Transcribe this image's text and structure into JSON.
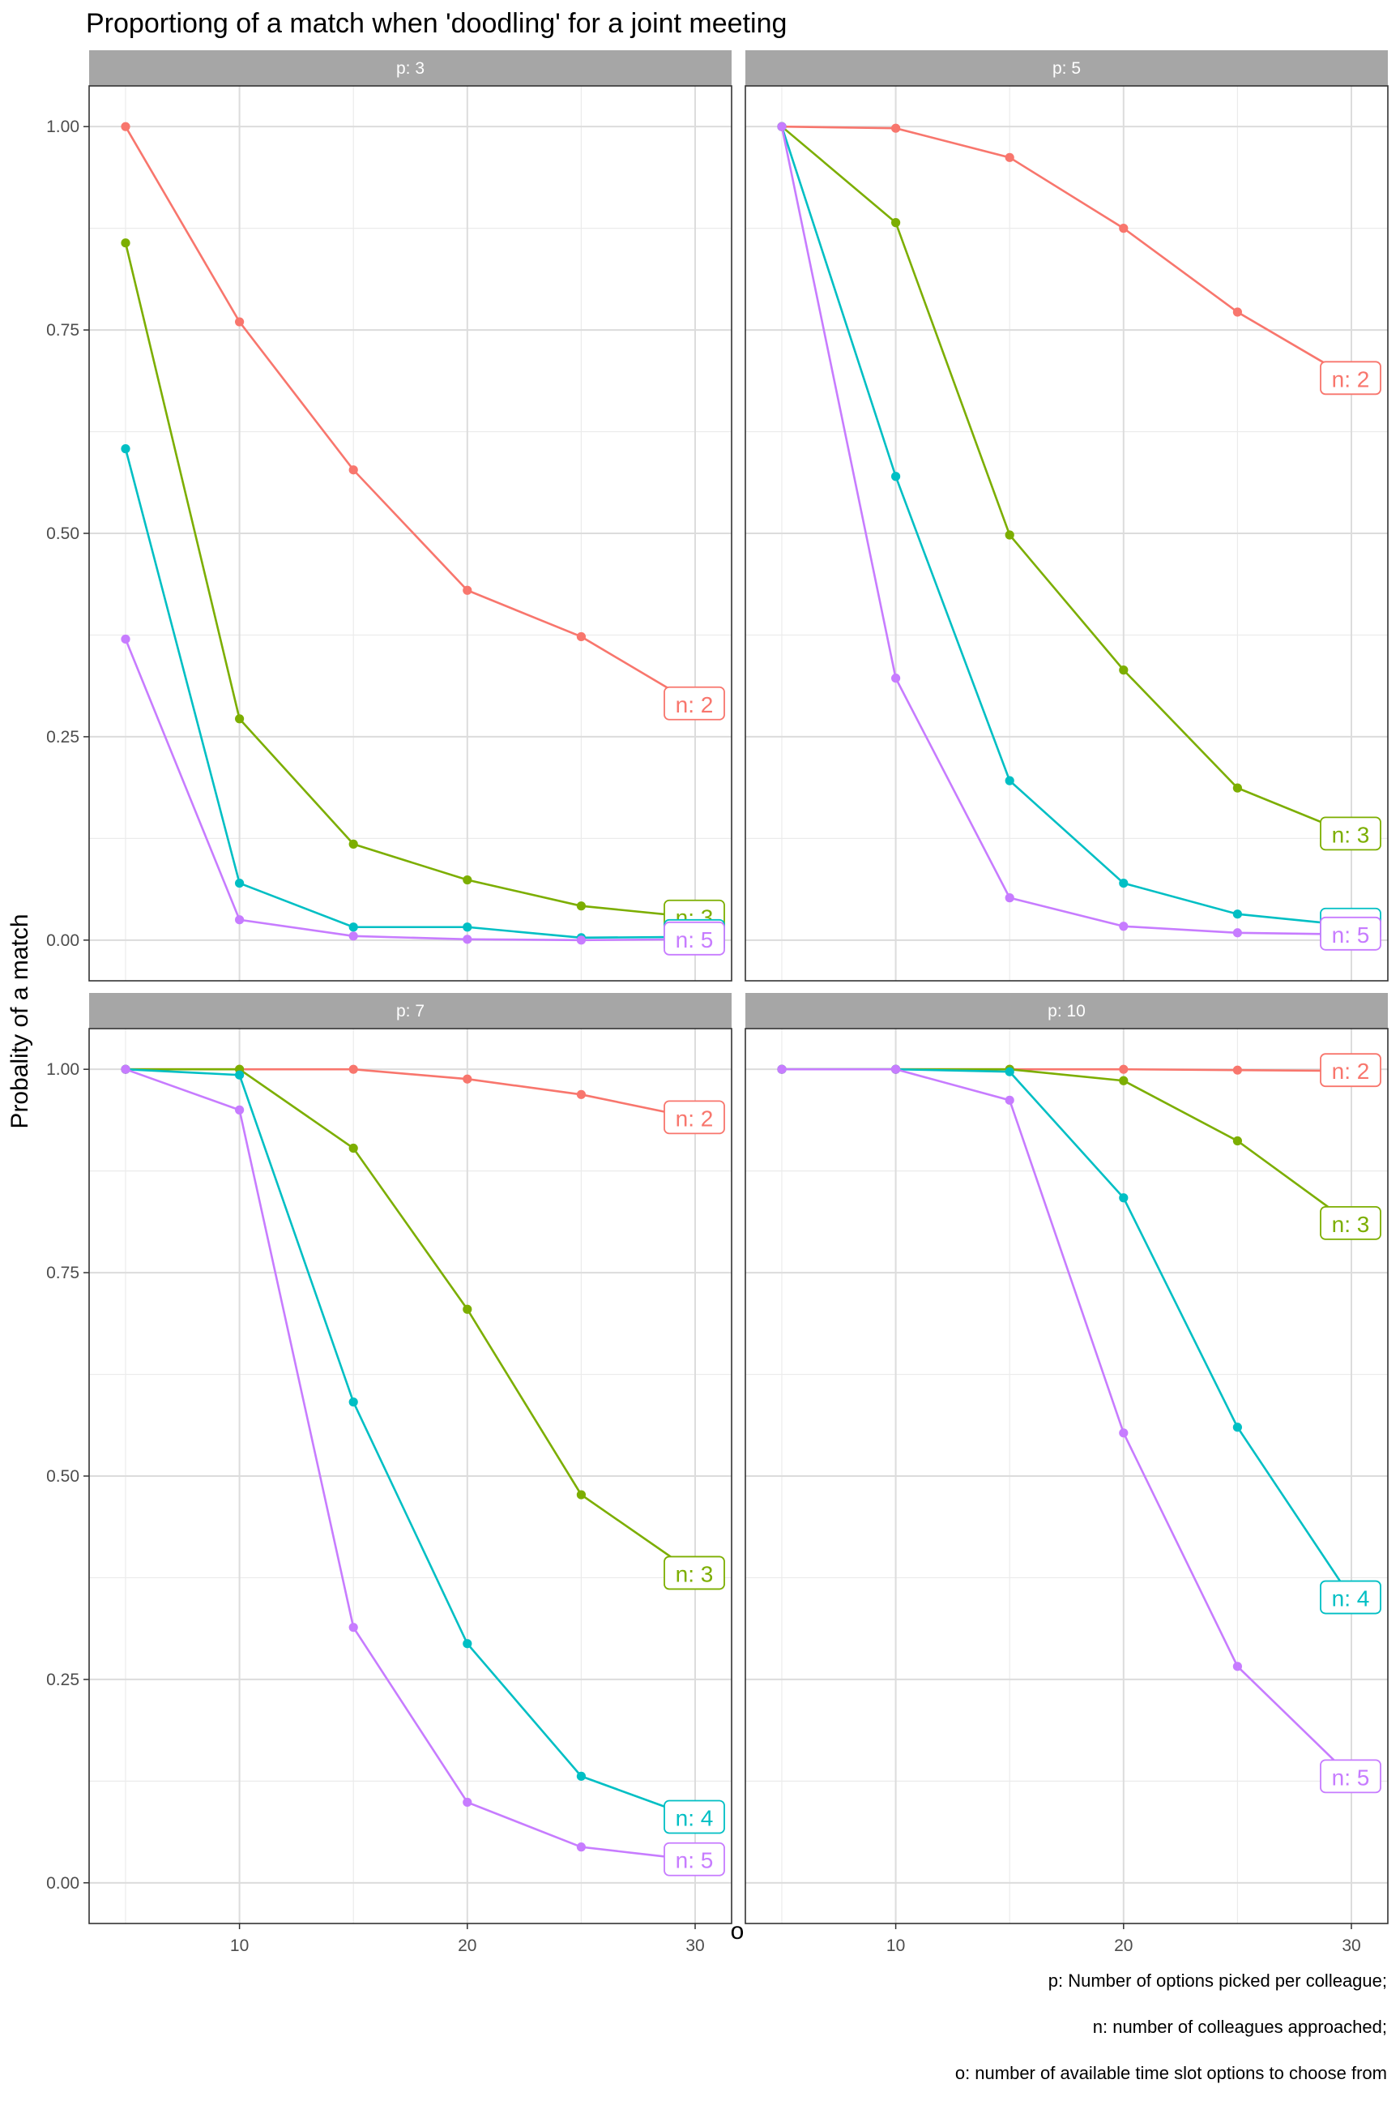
{
  "chart_data": {
    "type": "line",
    "title": "Proportiong of a match when 'doodling' for a joint meeting",
    "xlabel": "o",
    "ylabel": "Probality of a match",
    "xlim": [
      3.4,
      31.6
    ],
    "ylim": [
      -0.05,
      1.05
    ],
    "x_ticks": [
      10,
      20,
      30
    ],
    "x_tick_labels": [
      "10",
      "20",
      "30"
    ],
    "y_ticks": [
      0,
      0.25,
      0.5,
      0.75,
      1
    ],
    "y_tick_labels": [
      "0.00",
      "0.25",
      "0.50",
      "0.75",
      "1.00"
    ],
    "grid": true,
    "legend": "none (direct labels at line ends)",
    "x": [
      5,
      10,
      15,
      20,
      25,
      30
    ],
    "caption": [
      "p: Number of options picked per colleague;",
      "n: number of colleagues approached;",
      "o: number of available time slot options to choose from"
    ],
    "series_colors": {
      "n: 2": "#F8766D",
      "n: 3": "#7CAE00",
      "n: 4": "#00BFC4",
      "n: 5": "#C77CFF"
    },
    "facets": [
      {
        "strip": "p: 3",
        "series": [
          {
            "name": "n: 2",
            "values": [
              1.0,
              0.76,
              0.578,
              0.43,
              0.373,
              0.29
            ]
          },
          {
            "name": "n: 3",
            "values": [
              0.857,
              0.272,
              0.118,
              0.074,
              0.042,
              0.028
            ]
          },
          {
            "name": "n: 4",
            "values": [
              0.604,
              0.07,
              0.016,
              0.016,
              0.003,
              0.004
            ]
          },
          {
            "name": "n: 5",
            "values": [
              0.37,
              0.025,
              0.005,
              0.001,
              0.0,
              0.001
            ]
          }
        ]
      },
      {
        "strip": "p: 5",
        "series": [
          {
            "name": "n: 2",
            "values": [
              1.0,
              0.998,
              0.962,
              0.875,
              0.772,
              0.69
            ]
          },
          {
            "name": "n: 3",
            "values": [
              1.0,
              0.882,
              0.498,
              0.332,
              0.187,
              0.13
            ]
          },
          {
            "name": "n: 4",
            "values": [
              1.0,
              0.57,
              0.196,
              0.07,
              0.032,
              0.018
            ]
          },
          {
            "name": "n: 5",
            "values": [
              1.0,
              0.322,
              0.052,
              0.017,
              0.009,
              0.007
            ]
          }
        ]
      },
      {
        "strip": "p: 7",
        "series": [
          {
            "name": "n: 2",
            "values": [
              1.0,
              1.0,
              1.0,
              0.988,
              0.969,
              0.94
            ]
          },
          {
            "name": "n: 3",
            "values": [
              1.0,
              1.0,
              0.903,
              0.705,
              0.477,
              0.38
            ]
          },
          {
            "name": "n: 4",
            "values": [
              1.0,
              0.993,
              0.591,
              0.294,
              0.131,
              0.08
            ]
          },
          {
            "name": "n: 5",
            "values": [
              1.0,
              0.95,
              0.314,
              0.099,
              0.044,
              0.028
            ]
          }
        ]
      },
      {
        "strip": "p: 10",
        "series": [
          {
            "name": "n: 2",
            "values": [
              1.0,
              1.0,
              1.0,
              1.0,
              0.999,
              0.998
            ]
          },
          {
            "name": "n: 3",
            "values": [
              1.0,
              1.0,
              1.0,
              0.986,
              0.912,
              0.81
            ]
          },
          {
            "name": "n: 4",
            "values": [
              1.0,
              1.0,
              0.997,
              0.842,
              0.56,
              0.35
            ]
          },
          {
            "name": "n: 5",
            "values": [
              1.0,
              1.0,
              0.962,
              0.553,
              0.266,
              0.13
            ]
          }
        ]
      }
    ]
  }
}
